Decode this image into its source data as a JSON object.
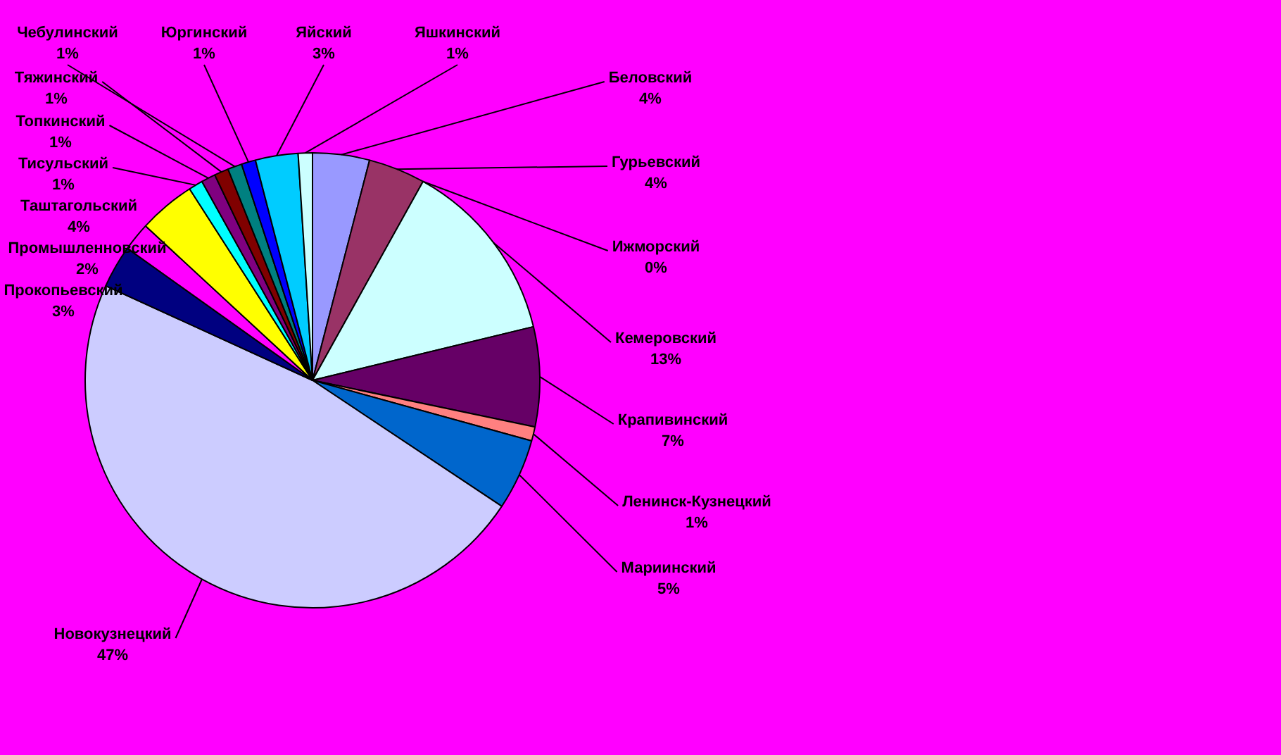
{
  "chart_data": {
    "type": "pie",
    "categories": [
      "Беловский",
      "Гурьевский",
      "Ижморский",
      "Кемеровский",
      "Крапивинский",
      "Ленинск-Кузнецкий",
      "Мариинский",
      "Новокузнецкий",
      "Прокопьевский",
      "Промышленновский",
      "Таштагольский",
      "Тисульский",
      "Топкинский",
      "Тяжинский",
      "Чебулинский",
      "Юргинский",
      "Яйский",
      "Яшкинский"
    ],
    "values": [
      4,
      4,
      0,
      13,
      7,
      1,
      5,
      47,
      3,
      2,
      4,
      1,
      1,
      1,
      1,
      1,
      3,
      1
    ],
    "colors": [
      "#9999ff",
      "#993366",
      "#ffffcc",
      "#ccffff",
      "#660066",
      "#ff8080",
      "#0066cc",
      "#ccccff",
      "#000080",
      "#ff00ff",
      "#ffff00",
      "#00ffff",
      "#800080",
      "#800000",
      "#008080",
      "#0000ff",
      "#00ccff",
      "#ccffff"
    ],
    "value_labels": [
      "4%",
      "4%",
      "0%",
      "13%",
      "7%",
      "1%",
      "5%",
      "47%",
      "3%",
      "2%",
      "4%",
      "1%",
      "1%",
      "1%",
      "1%",
      "1%",
      "3%",
      "1%"
    ],
    "legend": false
  }
}
